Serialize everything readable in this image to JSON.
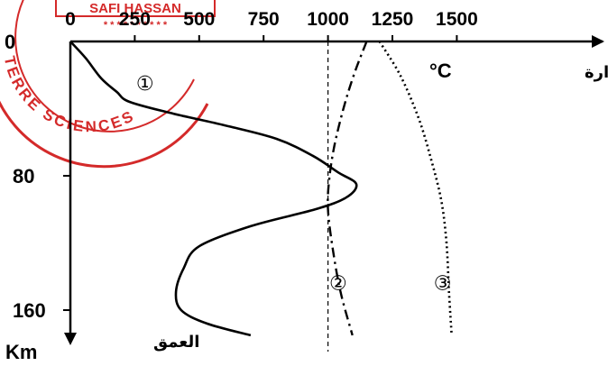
{
  "stamp": {
    "name_text": "SAFI HASSAN",
    "stars_text": "* * * * * * * * * *",
    "ring_text": "TERRE SCIENCES",
    "color": "#d42a2a"
  },
  "chart_data": {
    "type": "line",
    "title": "",
    "x_axis": {
      "label": "درجة الحرارة",
      "unit": "°C",
      "ticks": [
        "0",
        "250",
        "500",
        "750",
        "1000",
        "1250",
        "1500"
      ],
      "tick_values": [
        0,
        250,
        500,
        750,
        1000,
        1250,
        1500
      ],
      "range": [
        0,
        2050
      ],
      "position": "top"
    },
    "y_axis": {
      "label": "العمق",
      "unit": "Km",
      "ticks": [
        "0",
        "80",
        "160"
      ],
      "tick_values": [
        0,
        80,
        160
      ],
      "range": [
        0,
        175
      ],
      "inverted": true
    },
    "reference_line": {
      "x": 1000,
      "style": "dashed"
    },
    "series": [
      {
        "label": "①",
        "style": "solid",
        "points": [
          [
            0,
            0
          ],
          [
            60,
            10
          ],
          [
            120,
            22
          ],
          [
            180,
            30
          ],
          [
            230,
            36
          ],
          [
            400,
            43
          ],
          [
            600,
            50
          ],
          [
            800,
            58
          ],
          [
            940,
            68
          ],
          [
            1040,
            78
          ],
          [
            1110,
            85
          ],
          [
            1070,
            93
          ],
          [
            950,
            100
          ],
          [
            700,
            110
          ],
          [
            500,
            122
          ],
          [
            440,
            135
          ],
          [
            410,
            149
          ],
          [
            430,
            160
          ],
          [
            530,
            168
          ],
          [
            700,
            175
          ]
        ],
        "label_position": [
          255,
          29
        ]
      },
      {
        "label": "②",
        "style": "dashdot",
        "points": [
          [
            1150,
            0
          ],
          [
            1100,
            20
          ],
          [
            1060,
            40
          ],
          [
            1025,
            62
          ],
          [
            1005,
            82
          ],
          [
            1000,
            100
          ],
          [
            1020,
            125
          ],
          [
            1050,
            150
          ],
          [
            1095,
            175
          ]
        ],
        "label_position": [
          1005,
          148
        ]
      },
      {
        "label": "③",
        "style": "dotted",
        "points": [
          [
            1200,
            0
          ],
          [
            1280,
            20
          ],
          [
            1350,
            45
          ],
          [
            1400,
            70
          ],
          [
            1440,
            95
          ],
          [
            1460,
            120
          ],
          [
            1470,
            150
          ],
          [
            1480,
            175
          ]
        ],
        "label_position": [
          1410,
          148
        ]
      }
    ],
    "grid": false,
    "legend": "none"
  }
}
